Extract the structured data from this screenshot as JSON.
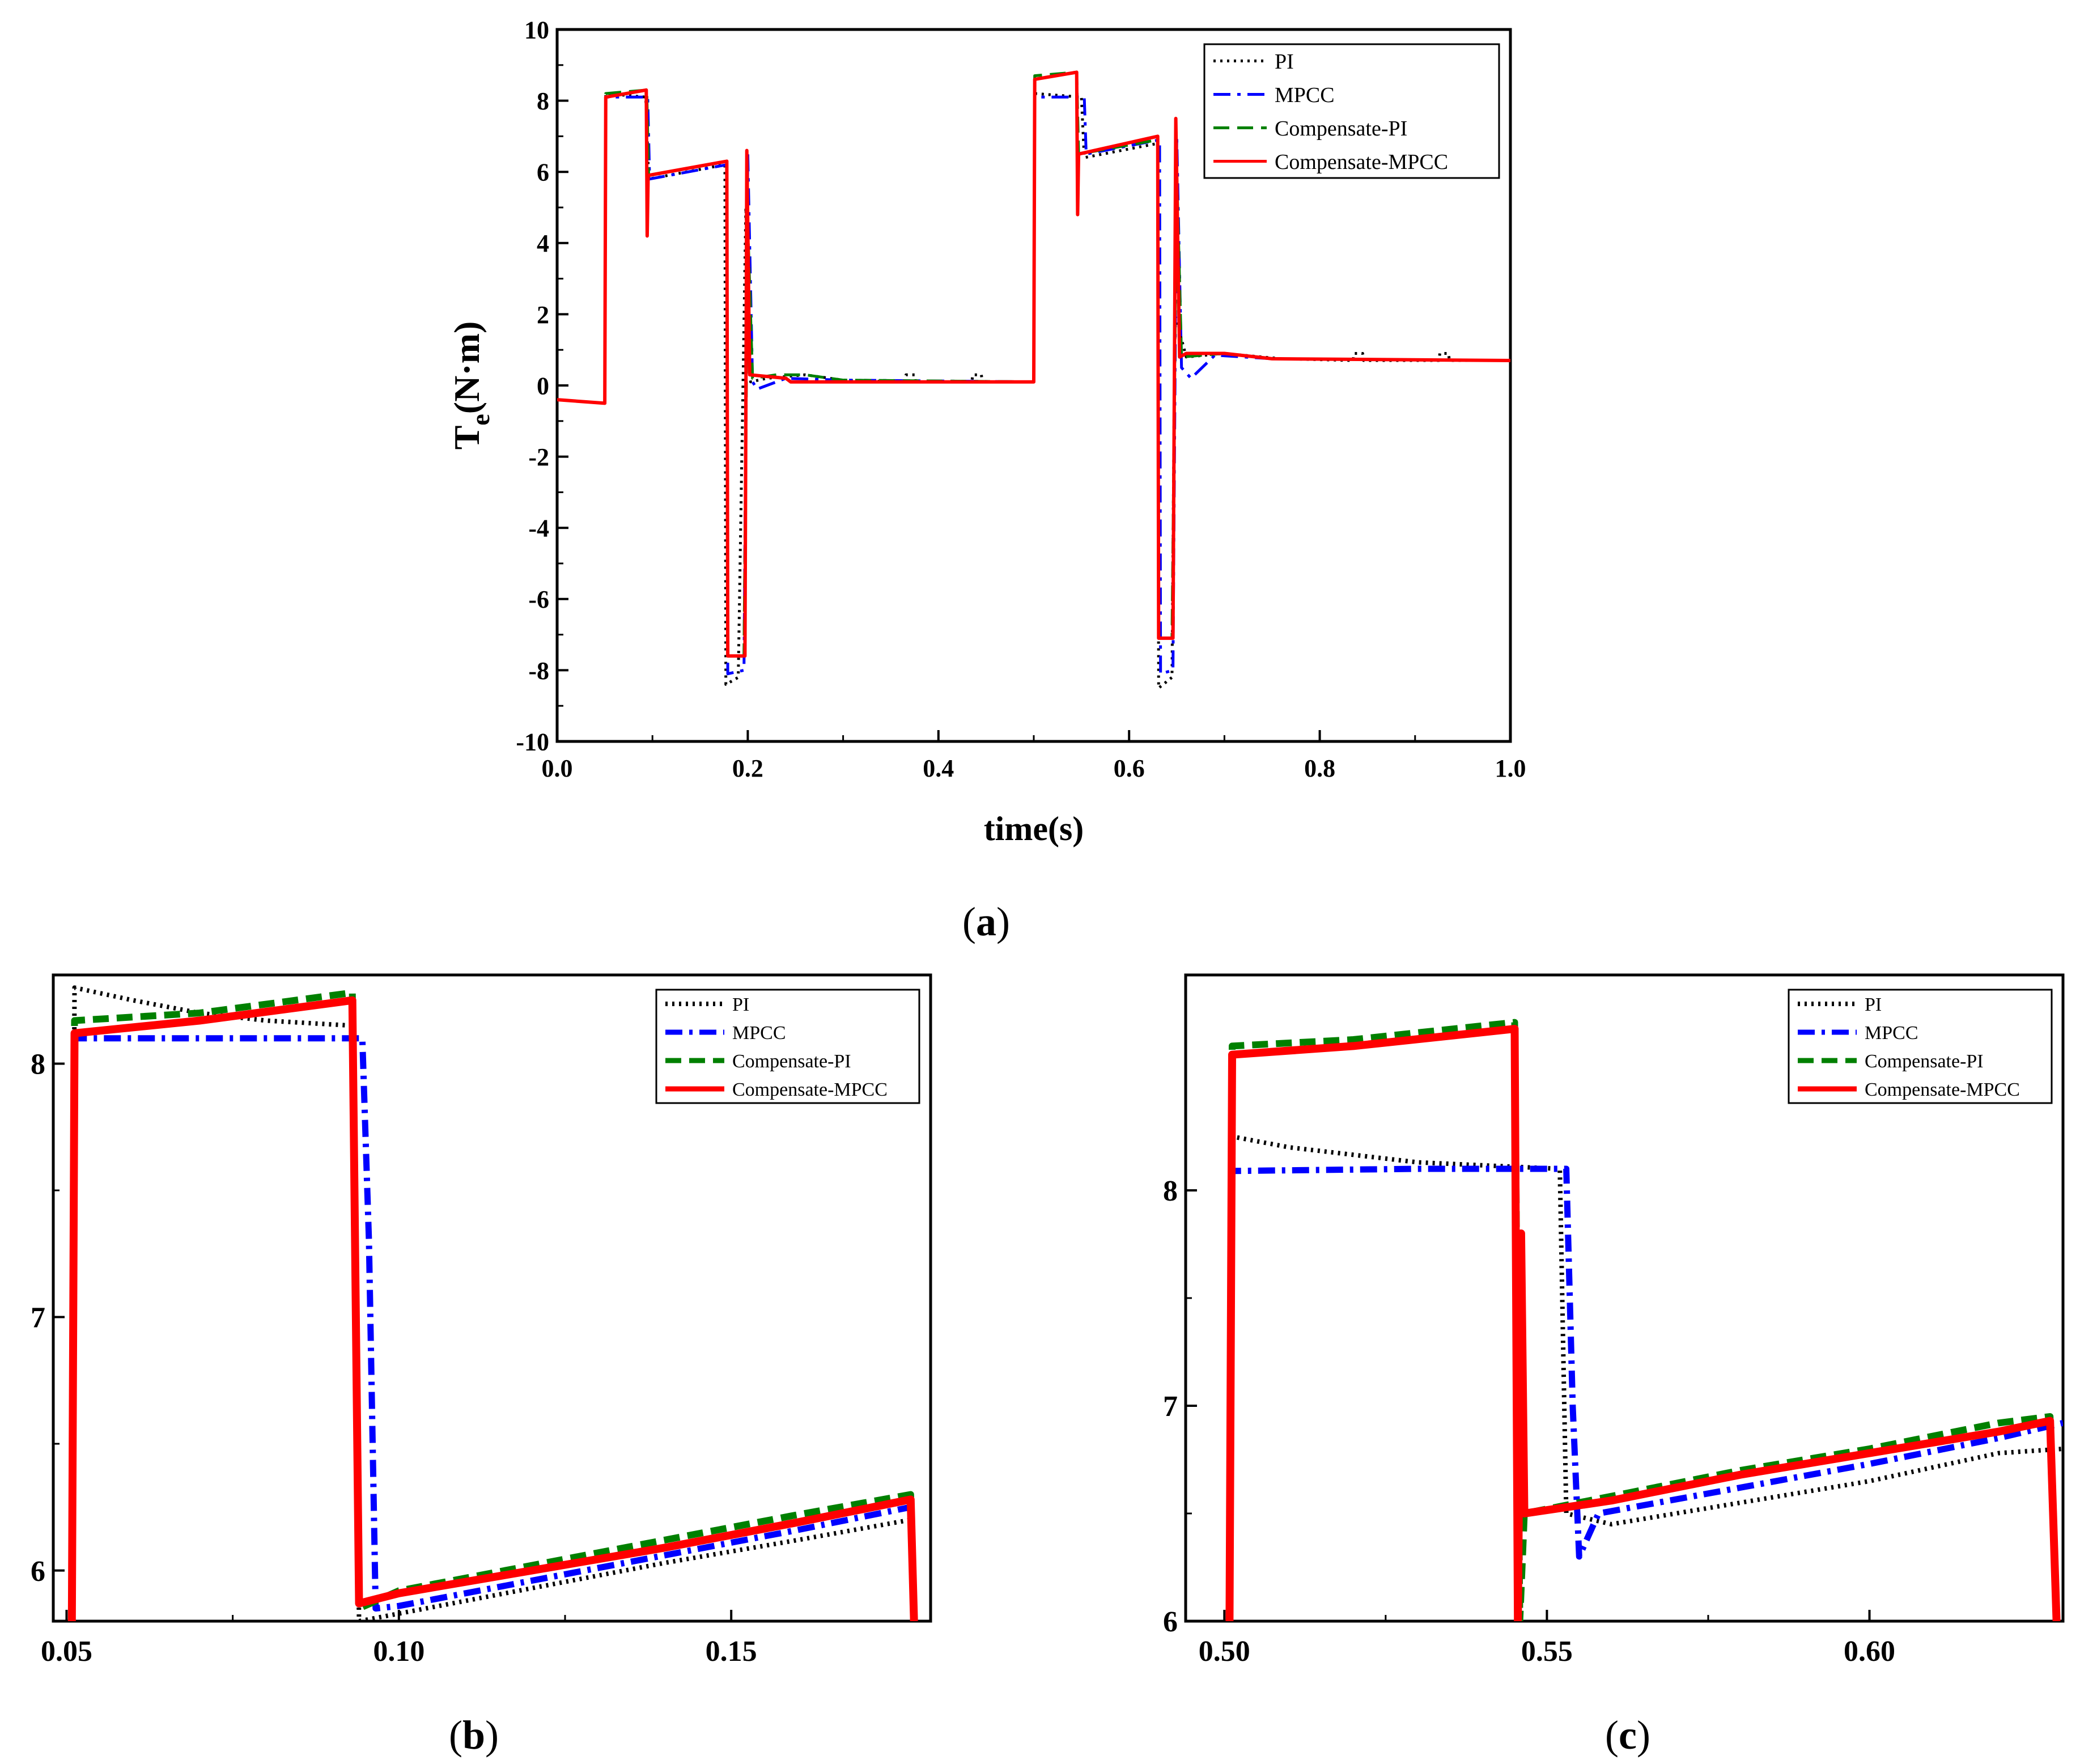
{
  "captions": {
    "a_open": "(",
    "a_letter": "a",
    "a_close": ")",
    "b_open": "(",
    "b_letter": "b",
    "b_close": ")",
    "c_open": "(",
    "c_letter": "c",
    "c_close": ")"
  },
  "colors": {
    "PI": "#000000",
    "MPCC": "#0000ff",
    "Compensate-PI": "#008000",
    "Compensate-MPCC": "#ff0000"
  },
  "chart_data": [
    {
      "id": "a",
      "type": "line",
      "title": "",
      "xlabel": "time(s)",
      "ylabel_main": "T",
      "ylabel_sub": "e",
      "ylabel_rest": "(N·m)",
      "xlim": [
        0.0,
        1.0
      ],
      "ylim": [
        -10,
        10
      ],
      "xticks": [
        "0.0",
        "0.2",
        "0.4",
        "0.6",
        "0.8",
        "1.0"
      ],
      "yticks": [
        "-10",
        "-8",
        "-6",
        "-4",
        "-2",
        "0",
        "2",
        "4",
        "6",
        "8",
        "10"
      ],
      "legend": {
        "position": "top-right",
        "entries": [
          "PI",
          "MPCC",
          "Compensate-PI",
          "Compensate-MPCC"
        ]
      },
      "series": [
        {
          "name": "PI",
          "style": "dotted",
          "points": [
            [
              0,
              -0.4
            ],
            [
              0.05,
              -0.5
            ],
            [
              0.051,
              8.2
            ],
            [
              0.093,
              8.1
            ],
            [
              0.096,
              5.8
            ],
            [
              0.176,
              6.2
            ],
            [
              0.177,
              -8.4
            ],
            [
              0.19,
              -8.2
            ],
            [
              0.198,
              5.0
            ],
            [
              0.203,
              0.1
            ],
            [
              0.22,
              0.2
            ],
            [
              0.26,
              0.3
            ],
            [
              0.3,
              0.15
            ],
            [
              0.365,
              0.1
            ],
            [
              0.366,
              0.3
            ],
            [
              0.375,
              0.3
            ],
            [
              0.376,
              0.1
            ],
            [
              0.435,
              0.1
            ],
            [
              0.436,
              0.3
            ],
            [
              0.445,
              0.3
            ],
            [
              0.446,
              0.1
            ],
            [
              0.5,
              0.1
            ],
            [
              0.501,
              8.2
            ],
            [
              0.55,
              8.1
            ],
            [
              0.553,
              6.4
            ],
            [
              0.63,
              6.8
            ],
            [
              0.631,
              -8.5
            ],
            [
              0.645,
              -8.2
            ],
            [
              0.648,
              2.0
            ],
            [
              0.66,
              0.8
            ],
            [
              0.7,
              0.9
            ],
            [
              0.76,
              0.75
            ],
            [
              0.835,
              0.7
            ],
            [
              0.836,
              0.9
            ],
            [
              0.845,
              0.9
            ],
            [
              0.846,
              0.7
            ],
            [
              0.925,
              0.7
            ],
            [
              0.926,
              0.9
            ],
            [
              0.935,
              0.9
            ],
            [
              0.936,
              0.7
            ],
            [
              1.0,
              0.7
            ]
          ]
        },
        {
          "name": "MPCC",
          "style": "dashdot",
          "points": [
            [
              0,
              -0.4
            ],
            [
              0.05,
              -0.5
            ],
            [
              0.051,
              8.1
            ],
            [
              0.095,
              8.1
            ],
            [
              0.097,
              5.8
            ],
            [
              0.178,
              6.2
            ],
            [
              0.179,
              -8.1
            ],
            [
              0.196,
              -8.0
            ],
            [
              0.2,
              6.5
            ],
            [
              0.205,
              0.1
            ],
            [
              0.21,
              -0.1
            ],
            [
              0.24,
              0.2
            ],
            [
              0.3,
              0.15
            ],
            [
              0.5,
              0.1
            ],
            [
              0.501,
              8.1
            ],
            [
              0.553,
              8.1
            ],
            [
              0.555,
              6.5
            ],
            [
              0.632,
              6.9
            ],
            [
              0.633,
              -8.1
            ],
            [
              0.646,
              -8.0
            ],
            [
              0.65,
              7.0
            ],
            [
              0.655,
              0.5
            ],
            [
              0.665,
              0.2
            ],
            [
              0.69,
              0.85
            ],
            [
              0.75,
              0.75
            ],
            [
              1.0,
              0.7
            ]
          ]
        },
        {
          "name": "Compensate-PI",
          "style": "dashed",
          "points": [
            [
              0,
              -0.4
            ],
            [
              0.05,
              -0.5
            ],
            [
              0.051,
              8.2
            ],
            [
              0.094,
              8.3
            ],
            [
              0.096,
              5.9
            ],
            [
              0.178,
              6.3
            ],
            [
              0.179,
              -7.6
            ],
            [
              0.196,
              -7.6
            ],
            [
              0.2,
              4.5
            ],
            [
              0.205,
              0.2
            ],
            [
              0.23,
              0.3
            ],
            [
              0.26,
              0.3
            ],
            [
              0.3,
              0.15
            ],
            [
              0.5,
              0.1
            ],
            [
              0.501,
              8.7
            ],
            [
              0.545,
              8.8
            ],
            [
              0.547,
              6.5
            ],
            [
              0.63,
              6.9
            ],
            [
              0.631,
              -7.1
            ],
            [
              0.645,
              -7.1
            ],
            [
              0.65,
              6.0
            ],
            [
              0.655,
              0.8
            ],
            [
              0.7,
              0.9
            ],
            [
              0.75,
              0.75
            ],
            [
              1.0,
              0.7
            ]
          ]
        },
        {
          "name": "Compensate-MPCC",
          "style": "solid",
          "points": [
            [
              0,
              -0.4
            ],
            [
              0.05,
              -0.5
            ],
            [
              0.051,
              8.1
            ],
            [
              0.0935,
              8.3
            ],
            [
              0.0945,
              4.2
            ],
            [
              0.0955,
              5.9
            ],
            [
              0.178,
              6.3
            ],
            [
              0.179,
              -7.6
            ],
            [
              0.197,
              -7.6
            ],
            [
              0.199,
              6.6
            ],
            [
              0.202,
              0.3
            ],
            [
              0.24,
              0.2
            ],
            [
              0.245,
              0.1
            ],
            [
              0.3,
              0.1
            ],
            [
              0.5,
              0.1
            ],
            [
              0.501,
              8.6
            ],
            [
              0.545,
              8.8
            ],
            [
              0.546,
              4.8
            ],
            [
              0.547,
              6.5
            ],
            [
              0.63,
              7.0
            ],
            [
              0.631,
              -7.1
            ],
            [
              0.646,
              -7.1
            ],
            [
              0.649,
              7.5
            ],
            [
              0.653,
              0.8
            ],
            [
              0.66,
              0.9
            ],
            [
              0.7,
              0.9
            ],
            [
              0.75,
              0.75
            ],
            [
              1.0,
              0.7
            ]
          ]
        }
      ]
    },
    {
      "id": "b",
      "type": "line",
      "title": "",
      "xlabel": "",
      "ylabel": "",
      "xlim": [
        0.048,
        0.18
      ],
      "ylim": [
        5.8,
        8.35
      ],
      "xticks": [
        "0.05",
        "0.10",
        "0.15"
      ],
      "yticks": [
        "6",
        "7",
        "8"
      ],
      "legend": {
        "position": "top-right",
        "entries": [
          "PI",
          "MPCC",
          "Compensate-PI",
          "Compensate-MPCC"
        ]
      },
      "series": [
        {
          "name": "PI",
          "style": "dotted",
          "points": [
            [
              0.0508,
              5.8
            ],
            [
              0.0512,
              8.3
            ],
            [
              0.06,
              8.25
            ],
            [
              0.07,
              8.2
            ],
            [
              0.08,
              8.17
            ],
            [
              0.093,
              8.15
            ],
            [
              0.094,
              5.8
            ],
            [
              0.1,
              5.83
            ],
            [
              0.12,
              5.93
            ],
            [
              0.14,
              6.03
            ],
            [
              0.16,
              6.12
            ],
            [
              0.177,
              6.2
            ],
            [
              0.1775,
              5.8
            ]
          ]
        },
        {
          "name": "MPCC",
          "style": "dashdot",
          "points": [
            [
              0.0508,
              5.8
            ],
            [
              0.0512,
              8.1
            ],
            [
              0.07,
              8.1
            ],
            [
              0.0945,
              8.1
            ],
            [
              0.0955,
              7.3
            ],
            [
              0.0965,
              5.85
            ],
            [
              0.1,
              5.86
            ],
            [
              0.12,
              5.96
            ],
            [
              0.14,
              6.06
            ],
            [
              0.16,
              6.16
            ],
            [
              0.177,
              6.25
            ],
            [
              0.1775,
              5.8
            ]
          ]
        },
        {
          "name": "Compensate-PI",
          "style": "dashed",
          "points": [
            [
              0.0508,
              5.8
            ],
            [
              0.0512,
              8.17
            ],
            [
              0.07,
              8.2
            ],
            [
              0.093,
              8.28
            ],
            [
              0.094,
              5.85
            ],
            [
              0.1,
              5.92
            ],
            [
              0.12,
              6.02
            ],
            [
              0.14,
              6.12
            ],
            [
              0.16,
              6.22
            ],
            [
              0.177,
              6.3
            ],
            [
              0.1775,
              5.8
            ]
          ]
        },
        {
          "name": "Compensate-MPCC",
          "style": "solid",
          "points": [
            [
              0.0508,
              5.8
            ],
            [
              0.0512,
              8.12
            ],
            [
              0.07,
              8.17
            ],
            [
              0.093,
              8.25
            ],
            [
              0.094,
              5.87
            ],
            [
              0.1,
              5.91
            ],
            [
              0.12,
              6.0
            ],
            [
              0.14,
              6.09
            ],
            [
              0.16,
              6.19
            ],
            [
              0.177,
              6.28
            ],
            [
              0.1775,
              5.8
            ]
          ]
        }
      ]
    },
    {
      "id": "c",
      "type": "line",
      "title": "",
      "xlabel": "",
      "ylabel": "",
      "xlim": [
        0.494,
        0.63
      ],
      "ylim": [
        6.0,
        9.0
      ],
      "xticks": [
        "0.50",
        "0.55",
        "0.60"
      ],
      "yticks": [
        "6",
        "7",
        "8"
      ],
      "legend": {
        "position": "top-right",
        "entries": [
          "PI",
          "MPCC",
          "Compensate-PI",
          "Compensate-MPCC"
        ]
      },
      "series": [
        {
          "name": "PI",
          "style": "dotted",
          "points": [
            [
              0.5008,
              6.0
            ],
            [
              0.5012,
              8.25
            ],
            [
              0.51,
              8.2
            ],
            [
              0.53,
              8.13
            ],
            [
              0.552,
              8.1
            ],
            [
              0.553,
              6.5
            ],
            [
              0.56,
              6.45
            ],
            [
              0.58,
              6.55
            ],
            [
              0.6,
              6.65
            ],
            [
              0.62,
              6.78
            ],
            [
              0.63,
              6.8
            ]
          ]
        },
        {
          "name": "MPCC",
          "style": "dashdot",
          "points": [
            [
              0.5008,
              6.0
            ],
            [
              0.5012,
              8.09
            ],
            [
              0.53,
              8.1
            ],
            [
              0.553,
              8.1
            ],
            [
              0.554,
              7.0
            ],
            [
              0.555,
              6.3
            ],
            [
              0.558,
              6.5
            ],
            [
              0.58,
              6.62
            ],
            [
              0.6,
              6.73
            ],
            [
              0.62,
              6.85
            ],
            [
              0.63,
              6.92
            ]
          ]
        },
        {
          "name": "Compensate-PI",
          "style": "dashed",
          "points": [
            [
              0.5008,
              6.0
            ],
            [
              0.5012,
              8.67
            ],
            [
              0.52,
              8.7
            ],
            [
              0.545,
              8.78
            ],
            [
              0.5458,
              6.0
            ],
            [
              0.5465,
              6.5
            ],
            [
              0.56,
              6.58
            ],
            [
              0.58,
              6.7
            ],
            [
              0.6,
              6.8
            ],
            [
              0.62,
              6.92
            ],
            [
              0.628,
              6.95
            ],
            [
              0.629,
              6.0
            ]
          ]
        },
        {
          "name": "Compensate-MPCC",
          "style": "solid",
          "points": [
            [
              0.5008,
              6.0
            ],
            [
              0.5012,
              8.63
            ],
            [
              0.52,
              8.67
            ],
            [
              0.545,
              8.75
            ],
            [
              0.5455,
              6.0
            ],
            [
              0.546,
              7.8
            ],
            [
              0.5465,
              6.5
            ],
            [
              0.56,
              6.56
            ],
            [
              0.58,
              6.68
            ],
            [
              0.6,
              6.78
            ],
            [
              0.62,
              6.88
            ],
            [
              0.628,
              6.93
            ],
            [
              0.629,
              6.0
            ]
          ]
        }
      ]
    }
  ]
}
